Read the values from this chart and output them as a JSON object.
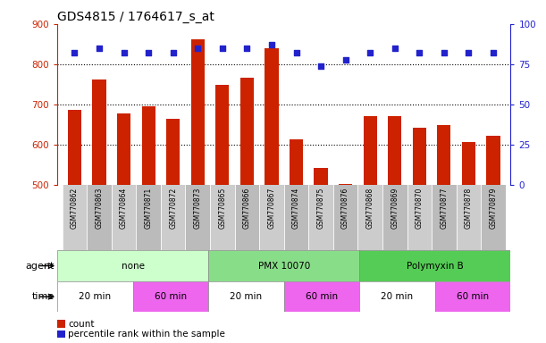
{
  "title": "GDS4815 / 1764617_s_at",
  "samples": [
    "GSM770862",
    "GSM770863",
    "GSM770864",
    "GSM770871",
    "GSM770872",
    "GSM770873",
    "GSM770865",
    "GSM770866",
    "GSM770867",
    "GSM770874",
    "GSM770875",
    "GSM770876",
    "GSM770868",
    "GSM770869",
    "GSM770870",
    "GSM770877",
    "GSM770878",
    "GSM770879"
  ],
  "counts": [
    688,
    762,
    679,
    696,
    665,
    862,
    750,
    766,
    840,
    613,
    543,
    503,
    672,
    672,
    643,
    649,
    607,
    623
  ],
  "percentiles": [
    82,
    85,
    82,
    82,
    82,
    85,
    85,
    85,
    87,
    82,
    74,
    78,
    82,
    85,
    82,
    82,
    82,
    82
  ],
  "bar_color": "#cc2200",
  "dot_color": "#2222cc",
  "ylim_left": [
    500,
    900
  ],
  "ylim_right": [
    0,
    100
  ],
  "yticks_left": [
    500,
    600,
    700,
    800,
    900
  ],
  "yticks_right": [
    0,
    25,
    50,
    75,
    100
  ],
  "grid_values": [
    600,
    700,
    800
  ],
  "agent_groups": [
    {
      "label": "none",
      "start": 0,
      "end": 6,
      "color": "#ccffcc"
    },
    {
      "label": "PMX 10070",
      "start": 6,
      "end": 12,
      "color": "#88dd88"
    },
    {
      "label": "Polymyxin B",
      "start": 12,
      "end": 18,
      "color": "#55cc55"
    }
  ],
  "time_groups": [
    {
      "label": "20 min",
      "start": 0,
      "end": 3,
      "color": "#ffffff"
    },
    {
      "label": "60 min",
      "start": 3,
      "end": 6,
      "color": "#ee66ee"
    },
    {
      "label": "20 min",
      "start": 6,
      "end": 9,
      "color": "#ffffff"
    },
    {
      "label": "60 min",
      "start": 9,
      "end": 12,
      "color": "#ee66ee"
    },
    {
      "label": "20 min",
      "start": 12,
      "end": 15,
      "color": "#ffffff"
    },
    {
      "label": "60 min",
      "start": 15,
      "end": 18,
      "color": "#ee66ee"
    }
  ],
  "legend_count_color": "#cc2200",
  "legend_dot_color": "#2222cc",
  "agent_label": "agent",
  "time_label": "time",
  "legend_count_text": "count",
  "legend_percentile_text": "percentile rank within the sample",
  "tick_label_color_left": "#cc2200",
  "tick_label_color_right": "#2222cc",
  "title_fontsize": 10,
  "bar_width": 0.55,
  "background_color": "#ffffff",
  "sample_bg_color": "#cccccc",
  "sample_bg_alt": "#bbbbbb"
}
